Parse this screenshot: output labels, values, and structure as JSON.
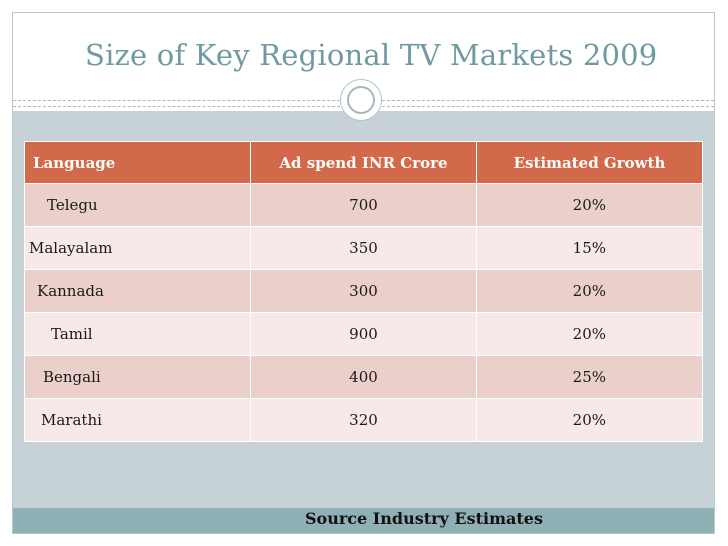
{
  "slide": {
    "title": "Size of Key Regional TV Markets 2009",
    "source": "Source Industry Estimates",
    "colors": {
      "title": "#6f9aa1",
      "header_bg": "#d2694a",
      "row_odd": "#ebcfcb",
      "row_even": "#f6e9e7",
      "band": "#c7d2d6",
      "bottom_strip": "#8fb0b4"
    }
  },
  "table": {
    "headers": [
      "Language",
      "Ad spend INR Crore",
      "Estimated Growth"
    ],
    "rows": [
      [
        "Telegu",
        "700",
        "20%"
      ],
      [
        "Malayalam",
        "350",
        "15%"
      ],
      [
        "Kannada",
        "300",
        "20%"
      ],
      [
        "Tamil",
        "900",
        "20%"
      ],
      [
        "Bengali",
        "400",
        "25%"
      ],
      [
        "Marathi",
        "320",
        "20%"
      ]
    ]
  }
}
